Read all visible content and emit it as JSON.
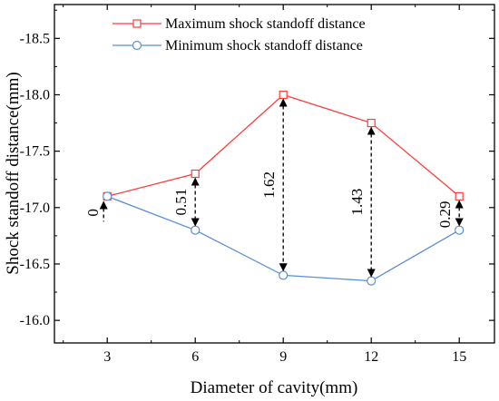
{
  "chart_data": {
    "type": "line",
    "x": [
      3,
      6,
      9,
      12,
      15
    ],
    "xlabel": "Diameter of cavity(mm)",
    "ylabel": "Shock standoff distance(mm)",
    "xticks": [
      "3",
      "6",
      "9",
      "12",
      "15"
    ],
    "yticks": [
      "-16.0",
      "-16.5",
      "-17.0",
      "-17.5",
      "-18.0",
      "-18.5"
    ],
    "ylim": [
      -15.8,
      -18.8
    ],
    "y_axis_inverted": true,
    "grid": false,
    "legend_position": "top",
    "series": [
      {
        "name": "Maximum shock standoff distance",
        "values": [
          -17.1,
          -17.3,
          -18.0,
          -17.75,
          -17.1
        ],
        "color": "#ff3b3b",
        "marker": "square"
      },
      {
        "name": "Minimum shock standoff distance",
        "values": [
          -17.1,
          -16.8,
          -16.4,
          -16.35,
          -16.8
        ],
        "color": "#5b8fd6",
        "marker": "circle"
      }
    ],
    "annotations": [
      {
        "x": 3,
        "label": "0"
      },
      {
        "x": 6,
        "label": "0.51"
      },
      {
        "x": 9,
        "label": "1.62"
      },
      {
        "x": 12,
        "label": "1.43"
      },
      {
        "x": 15,
        "label": "0.29"
      }
    ]
  }
}
